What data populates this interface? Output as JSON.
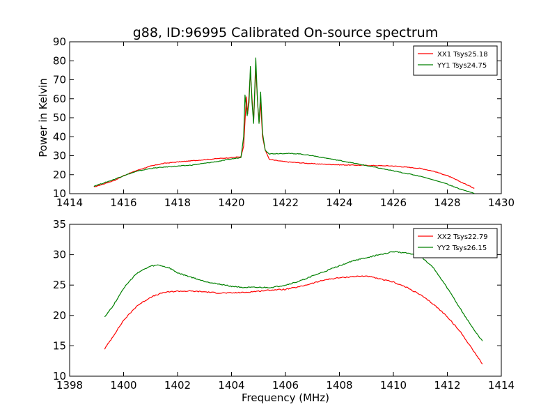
{
  "chart_data": {
    "title": "g88, ID:96995 Calibrated On-source spectrum",
    "panels": [
      {
        "type": "line",
        "xlabel": "",
        "ylabel": "Power in Kelvin",
        "xlim": [
          1414,
          1430
        ],
        "ylim": [
          10,
          90
        ],
        "xticks": [
          1414,
          1416,
          1418,
          1420,
          1422,
          1424,
          1426,
          1428,
          1430
        ],
        "yticks": [
          10,
          20,
          30,
          40,
          50,
          60,
          70,
          80,
          90
        ],
        "grid": false,
        "legend_position": "top-right",
        "series": [
          {
            "name": "XX1 Tsys25.18",
            "color": "#ff0000",
            "points": [
              [
                1414.9,
                13.5
              ],
              [
                1415.3,
                15.3
              ],
              [
                1415.7,
                17.2
              ],
              [
                1416.0,
                19.5
              ],
              [
                1416.5,
                22.3
              ],
              [
                1417.0,
                24.5
              ],
              [
                1417.5,
                26.0
              ],
              [
                1418.0,
                26.7
              ],
              [
                1418.5,
                27.3
              ],
              [
                1419.0,
                27.9
              ],
              [
                1419.5,
                28.5
              ],
              [
                1420.0,
                29.0
              ],
              [
                1420.35,
                29.5
              ],
              [
                1420.45,
                35.0
              ],
              [
                1420.5,
                48.0
              ],
              [
                1420.55,
                61.0
              ],
              [
                1420.6,
                52.0
              ],
              [
                1420.65,
                62.0
              ],
              [
                1420.7,
                74.0
              ],
              [
                1420.78,
                56.0
              ],
              [
                1420.82,
                48.0
              ],
              [
                1420.9,
                76.0
              ],
              [
                1420.98,
                55.0
              ],
              [
                1421.03,
                48.0
              ],
              [
                1421.08,
                58.0
              ],
              [
                1421.15,
                40.0
              ],
              [
                1421.25,
                33.0
              ],
              [
                1421.4,
                28.0
              ],
              [
                1422.0,
                26.8
              ],
              [
                1423.0,
                25.8
              ],
              [
                1424.0,
                25.2
              ],
              [
                1425.0,
                24.9
              ],
              [
                1426.0,
                24.6
              ],
              [
                1427.0,
                23.3
              ],
              [
                1427.5,
                21.8
              ],
              [
                1428.0,
                19.5
              ],
              [
                1428.5,
                16.2
              ],
              [
                1429.0,
                12.8
              ]
            ]
          },
          {
            "name": "YY1 Tsys24.75",
            "color": "#008000",
            "points": [
              [
                1414.9,
                14.0
              ],
              [
                1415.3,
                15.8
              ],
              [
                1415.7,
                17.8
              ],
              [
                1416.0,
                19.5
              ],
              [
                1416.5,
                21.8
              ],
              [
                1417.0,
                23.3
              ],
              [
                1417.5,
                24.0
              ],
              [
                1418.0,
                24.5
              ],
              [
                1418.5,
                25.0
              ],
              [
                1419.0,
                26.0
              ],
              [
                1419.5,
                27.0
              ],
              [
                1420.0,
                28.3
              ],
              [
                1420.35,
                29.0
              ],
              [
                1420.45,
                40.0
              ],
              [
                1420.5,
                62.0
              ],
              [
                1420.58,
                51.0
              ],
              [
                1420.65,
                58.0
              ],
              [
                1420.7,
                77.0
              ],
              [
                1420.76,
                58.0
              ],
              [
                1420.82,
                47.0
              ],
              [
                1420.9,
                81.5
              ],
              [
                1420.96,
                60.0
              ],
              [
                1421.02,
                47.0
              ],
              [
                1421.08,
                63.5
              ],
              [
                1421.15,
                42.0
              ],
              [
                1421.25,
                33.0
              ],
              [
                1421.4,
                31.0
              ],
              [
                1422.0,
                31.2
              ],
              [
                1422.5,
                31.0
              ],
              [
                1423.0,
                30.0
              ],
              [
                1424.0,
                27.5
              ],
              [
                1425.0,
                24.8
              ],
              [
                1426.0,
                22.0
              ],
              [
                1427.0,
                19.2
              ],
              [
                1428.0,
                15.0
              ],
              [
                1428.5,
                12.3
              ],
              [
                1429.0,
                10.2
              ]
            ]
          }
        ]
      },
      {
        "type": "line",
        "xlabel": "Frequency (MHz)",
        "ylabel": "",
        "xlim": [
          1398,
          1414
        ],
        "ylim": [
          10,
          35
        ],
        "xticks": [
          1398,
          1400,
          1402,
          1404,
          1406,
          1408,
          1410,
          1412,
          1414
        ],
        "yticks": [
          10,
          15,
          20,
          25,
          30,
          35
        ],
        "grid": false,
        "legend_position": "top-right",
        "series": [
          {
            "name": "XX2 Tsys22.79",
            "color": "#ff0000",
            "points": [
              [
                1399.3,
                14.5
              ],
              [
                1399.6,
                16.5
              ],
              [
                1400.0,
                19.2
              ],
              [
                1400.5,
                21.6
              ],
              [
                1401.0,
                23.0
              ],
              [
                1401.5,
                23.8
              ],
              [
                1402.0,
                24.0
              ],
              [
                1402.5,
                24.0
              ],
              [
                1403.0,
                23.9
              ],
              [
                1403.5,
                23.7
              ],
              [
                1404.0,
                23.7
              ],
              [
                1404.5,
                23.8
              ],
              [
                1405.0,
                24.0
              ],
              [
                1405.5,
                24.2
              ],
              [
                1406.0,
                24.3
              ],
              [
                1406.5,
                24.7
              ],
              [
                1407.0,
                25.3
              ],
              [
                1407.5,
                25.9
              ],
              [
                1408.0,
                26.2
              ],
              [
                1408.5,
                26.4
              ],
              [
                1409.0,
                26.5
              ],
              [
                1409.5,
                26.0
              ],
              [
                1410.0,
                25.5
              ],
              [
                1410.5,
                24.6
              ],
              [
                1411.0,
                23.4
              ],
              [
                1411.5,
                21.8
              ],
              [
                1412.0,
                19.8
              ],
              [
                1412.5,
                17.2
              ],
              [
                1413.0,
                14.0
              ],
              [
                1413.3,
                12.0
              ]
            ]
          },
          {
            "name": "YY2 Tsys26.15",
            "color": "#008000",
            "points": [
              [
                1399.3,
                19.8
              ],
              [
                1399.6,
                21.5
              ],
              [
                1400.0,
                24.5
              ],
              [
                1400.5,
                27.0
              ],
              [
                1401.0,
                28.1
              ],
              [
                1401.3,
                28.3
              ],
              [
                1401.7,
                27.8
              ],
              [
                1402.0,
                27.0
              ],
              [
                1402.5,
                26.3
              ],
              [
                1403.0,
                25.6
              ],
              [
                1403.5,
                25.2
              ],
              [
                1404.0,
                24.8
              ],
              [
                1404.5,
                24.6
              ],
              [
                1405.0,
                24.6
              ],
              [
                1405.5,
                24.6
              ],
              [
                1406.0,
                25.0
              ],
              [
                1406.5,
                25.6
              ],
              [
                1407.0,
                26.5
              ],
              [
                1407.5,
                27.3
              ],
              [
                1408.0,
                28.2
              ],
              [
                1408.5,
                29.0
              ],
              [
                1409.0,
                29.5
              ],
              [
                1409.5,
                30.0
              ],
              [
                1410.0,
                30.5
              ],
              [
                1410.5,
                30.3
              ],
              [
                1411.0,
                29.8
              ],
              [
                1411.5,
                27.8
              ],
              [
                1412.0,
                24.5
              ],
              [
                1412.5,
                21.0
              ],
              [
                1413.0,
                17.5
              ],
              [
                1413.3,
                15.8
              ]
            ]
          }
        ]
      }
    ]
  }
}
